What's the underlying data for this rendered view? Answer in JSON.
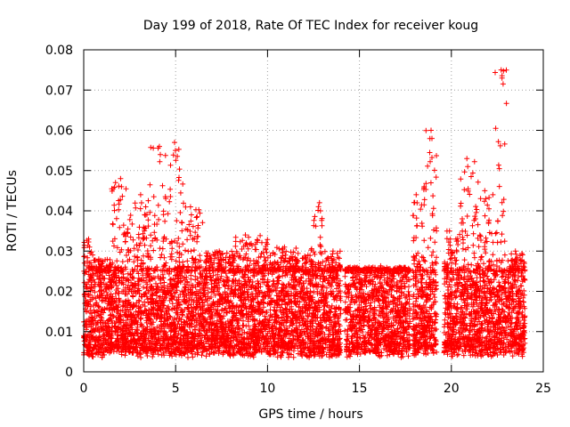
{
  "chart_data": {
    "type": "scatter",
    "title": "Day 199 of 2018, Rate Of TEC Index for receiver koug",
    "xlabel": "GPS time / hours",
    "ylabel": "ROTI / TECUs",
    "xlim": [
      0,
      25
    ],
    "ylim": [
      0,
      0.08
    ],
    "x_ticks": [
      0,
      5,
      10,
      15,
      20,
      25
    ],
    "x_tick_labels": [
      "0",
      "5",
      "10",
      "15",
      "20",
      "25"
    ],
    "y_ticks": [
      0,
      0.01,
      0.02,
      0.03,
      0.04,
      0.05,
      0.06,
      0.07,
      0.08
    ],
    "y_tick_labels": [
      "0",
      "0.01",
      "0.02",
      "0.03",
      "0.04",
      "0.05",
      "0.06",
      "0.07",
      "0.08"
    ],
    "grid": true,
    "marker": "+",
    "color": "#ff0000",
    "series": [
      {
        "name": "ROTI",
        "data_gaps_hours": [
          [
            14.0,
            14.2
          ],
          [
            17.75,
            17.9
          ],
          [
            19.2,
            19.6
          ],
          [
            24.0,
            25.0
          ]
        ],
        "typical_band": [
          0.005,
          0.025
        ],
        "segments": [
          {
            "x0": 0.0,
            "x1": 0.5,
            "peak": 0.033
          },
          {
            "x0": 0.5,
            "x1": 1.5,
            "peak": 0.028
          },
          {
            "x0": 1.5,
            "x1": 2.5,
            "peak": 0.048
          },
          {
            "x0": 2.5,
            "x1": 3.5,
            "peak": 0.044
          },
          {
            "x0": 3.5,
            "x1": 4.5,
            "peak": 0.056
          },
          {
            "x0": 4.5,
            "x1": 5.5,
            "peak": 0.057
          },
          {
            "x0": 5.5,
            "x1": 6.5,
            "peak": 0.041
          },
          {
            "x0": 6.5,
            "x1": 8.0,
            "peak": 0.03
          },
          {
            "x0": 8.0,
            "x1": 10.0,
            "peak": 0.034
          },
          {
            "x0": 10.0,
            "x1": 12.5,
            "peak": 0.031
          },
          {
            "x0": 12.5,
            "x1": 13.0,
            "peak": 0.042
          },
          {
            "x0": 13.0,
            "x1": 14.0,
            "peak": 0.03
          },
          {
            "x0": 14.2,
            "x1": 17.75,
            "peak": 0.026
          },
          {
            "x0": 17.9,
            "x1": 18.5,
            "peak": 0.044
          },
          {
            "x0": 18.5,
            "x1": 19.2,
            "peak": 0.06
          },
          {
            "x0": 19.6,
            "x1": 20.5,
            "peak": 0.035
          },
          {
            "x0": 20.5,
            "x1": 21.5,
            "peak": 0.053
          },
          {
            "x0": 21.5,
            "x1": 22.3,
            "peak": 0.045
          },
          {
            "x0": 22.3,
            "x1": 23.0,
            "peak": 0.075
          },
          {
            "x0": 23.0,
            "x1": 24.0,
            "peak": 0.03
          }
        ]
      }
    ]
  }
}
